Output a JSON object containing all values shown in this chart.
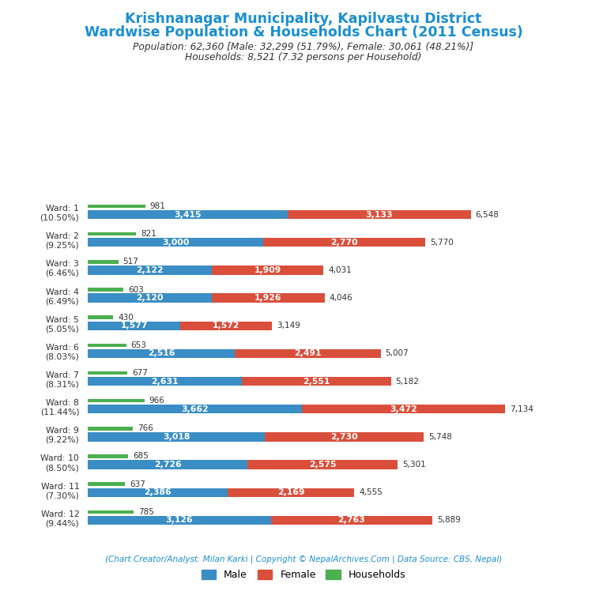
{
  "title_line1": "Krishnanagar Municipality, Kapilvastu District",
  "title_line2": "Wardwise Population & Households Chart (2011 Census)",
  "subtitle_line1": "Population: 62,360 [Male: 32,299 (51.79%), Female: 30,061 (48.21%)]",
  "subtitle_line2": "Households: 8,521 (7.32 persons per Household)",
  "footer": "(Chart Creator/Analyst: Milan Karki | Copyright © NepalArchives.Com | Data Source: CBS, Nepal)",
  "wards": [
    {
      "label": "Ward: 1\n(10.50%)",
      "households": 981,
      "male": 3415,
      "female": 3133,
      "total": 6548
    },
    {
      "label": "Ward: 2\n(9.25%)",
      "households": 821,
      "male": 3000,
      "female": 2770,
      "total": 5770
    },
    {
      "label": "Ward: 3\n(6.46%)",
      "households": 517,
      "male": 2122,
      "female": 1909,
      "total": 4031
    },
    {
      "label": "Ward: 4\n(6.49%)",
      "households": 603,
      "male": 2120,
      "female": 1926,
      "total": 4046
    },
    {
      "label": "Ward: 5\n(5.05%)",
      "households": 430,
      "male": 1577,
      "female": 1572,
      "total": 3149
    },
    {
      "label": "Ward: 6\n(8.03%)",
      "households": 653,
      "male": 2516,
      "female": 2491,
      "total": 5007
    },
    {
      "label": "Ward: 7\n(8.31%)",
      "households": 677,
      "male": 2631,
      "female": 2551,
      "total": 5182
    },
    {
      "label": "Ward: 8\n(11.44%)",
      "households": 966,
      "male": 3662,
      "female": 3472,
      "total": 7134
    },
    {
      "label": "Ward: 9\n(9.22%)",
      "households": 766,
      "male": 3018,
      "female": 2730,
      "total": 5748
    },
    {
      "label": "Ward: 10\n(8.50%)",
      "households": 685,
      "male": 2726,
      "female": 2575,
      "total": 5301
    },
    {
      "label": "Ward: 11\n(7.30%)",
      "households": 637,
      "male": 2386,
      "female": 2169,
      "total": 4555
    },
    {
      "label": "Ward: 12\n(9.44%)",
      "households": 785,
      "male": 3126,
      "female": 2763,
      "total": 5889
    }
  ],
  "color_male": "#3a8ec5",
  "color_female": "#d94f3b",
  "color_households": "#4caf50",
  "color_title": "#1a8fd1",
  "color_subtitle": "#333333",
  "color_footer": "#1a8fd1",
  "color_bg": "#ffffff"
}
